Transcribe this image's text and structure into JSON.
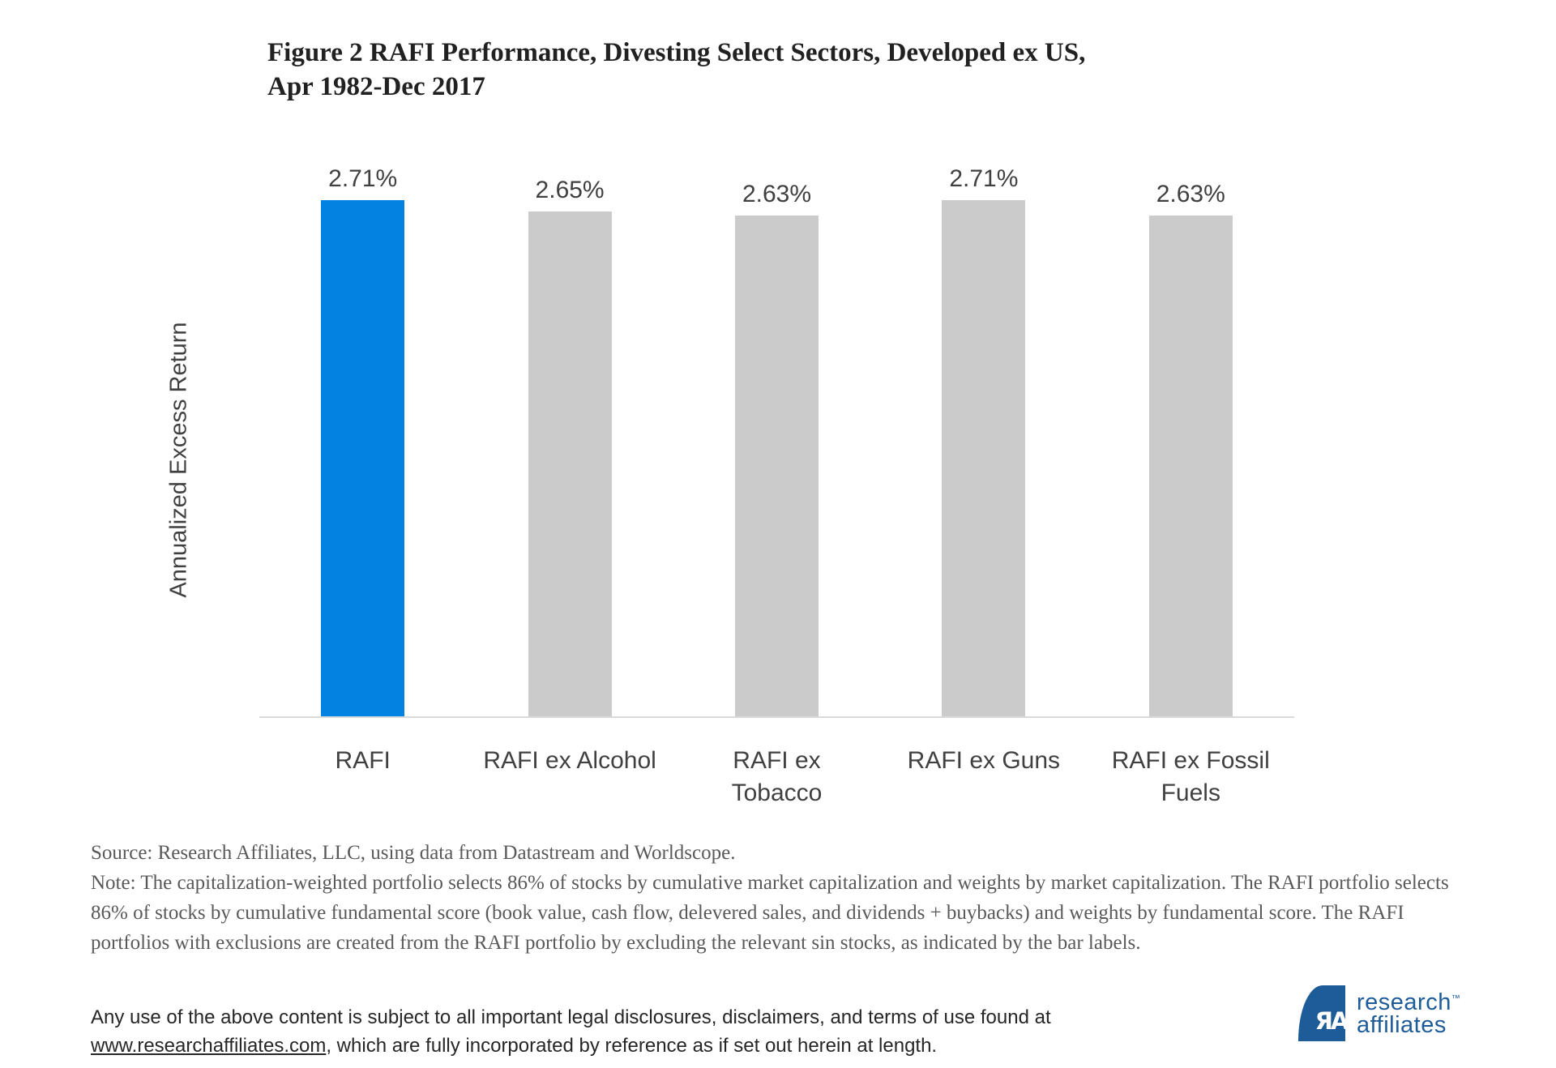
{
  "header": {
    "title_line1": "Figure 2 RAFI Performance, Divesting Select Sectors, Developed ex US,",
    "title_line2": "Apr 1982-Dec 2017"
  },
  "chart_data": {
    "type": "bar",
    "title": "Figure 2 RAFI Performance, Divesting Select Sectors, Developed ex US, Apr 1982-Dec 2017",
    "xlabel": "",
    "ylabel": "Annualized Excess Return",
    "categories": [
      "RAFI",
      "RAFI ex Alcohol",
      "RAFI ex Tobacco",
      "RAFI ex Guns",
      "RAFI ex Fossil Fuels"
    ],
    "values": [
      2.71,
      2.65,
      2.63,
      2.71,
      2.63
    ],
    "value_labels": [
      "2.71%",
      "2.65%",
      "2.63%",
      "2.71%",
      "2.63%"
    ],
    "units": "percent",
    "bar_colors": [
      "#0482e2",
      "#cbcbcb",
      "#cbcbcb",
      "#cbcbcb",
      "#cbcbcb"
    ],
    "accent_color": "#0482e2",
    "muted_color": "#cbcbcb",
    "axis_line_color": "#d9d9d9",
    "ylim": [
      0,
      2.95
    ],
    "grid": false,
    "legend_position": "none",
    "data_labels": true
  },
  "notes": {
    "source": "Source: Research Affiliates, LLC, using data from Datastream and Worldscope.",
    "note": "Note: The capitalization-weighted portfolio selects 86% of stocks by cumulative market capitalization and weights by market capitalization. The RAFI portfolio selects 86% of stocks by cumulative fundamental score (book value, cash flow, delevered sales, and dividends + buybacks) and weights by fundamental score. The RAFI portfolios with exclusions are created from the RAFI portfolio by excluding the relevant sin stocks, as indicated by the bar labels."
  },
  "footer": {
    "disclaimer_before_link": "Any use of the above content is subject to all important legal disclosures, disclaimers, and terms of use found at",
    "link_text": "www.researchaffiliates.com",
    "disclaimer_after_link": ", which are fully incorporated by reference as if set out herein at length."
  },
  "logo": {
    "monogram": "ЯA",
    "name_line1": "research",
    "name_line2": "affiliates",
    "trademark": "™",
    "brand_color": "#1e5c99"
  }
}
